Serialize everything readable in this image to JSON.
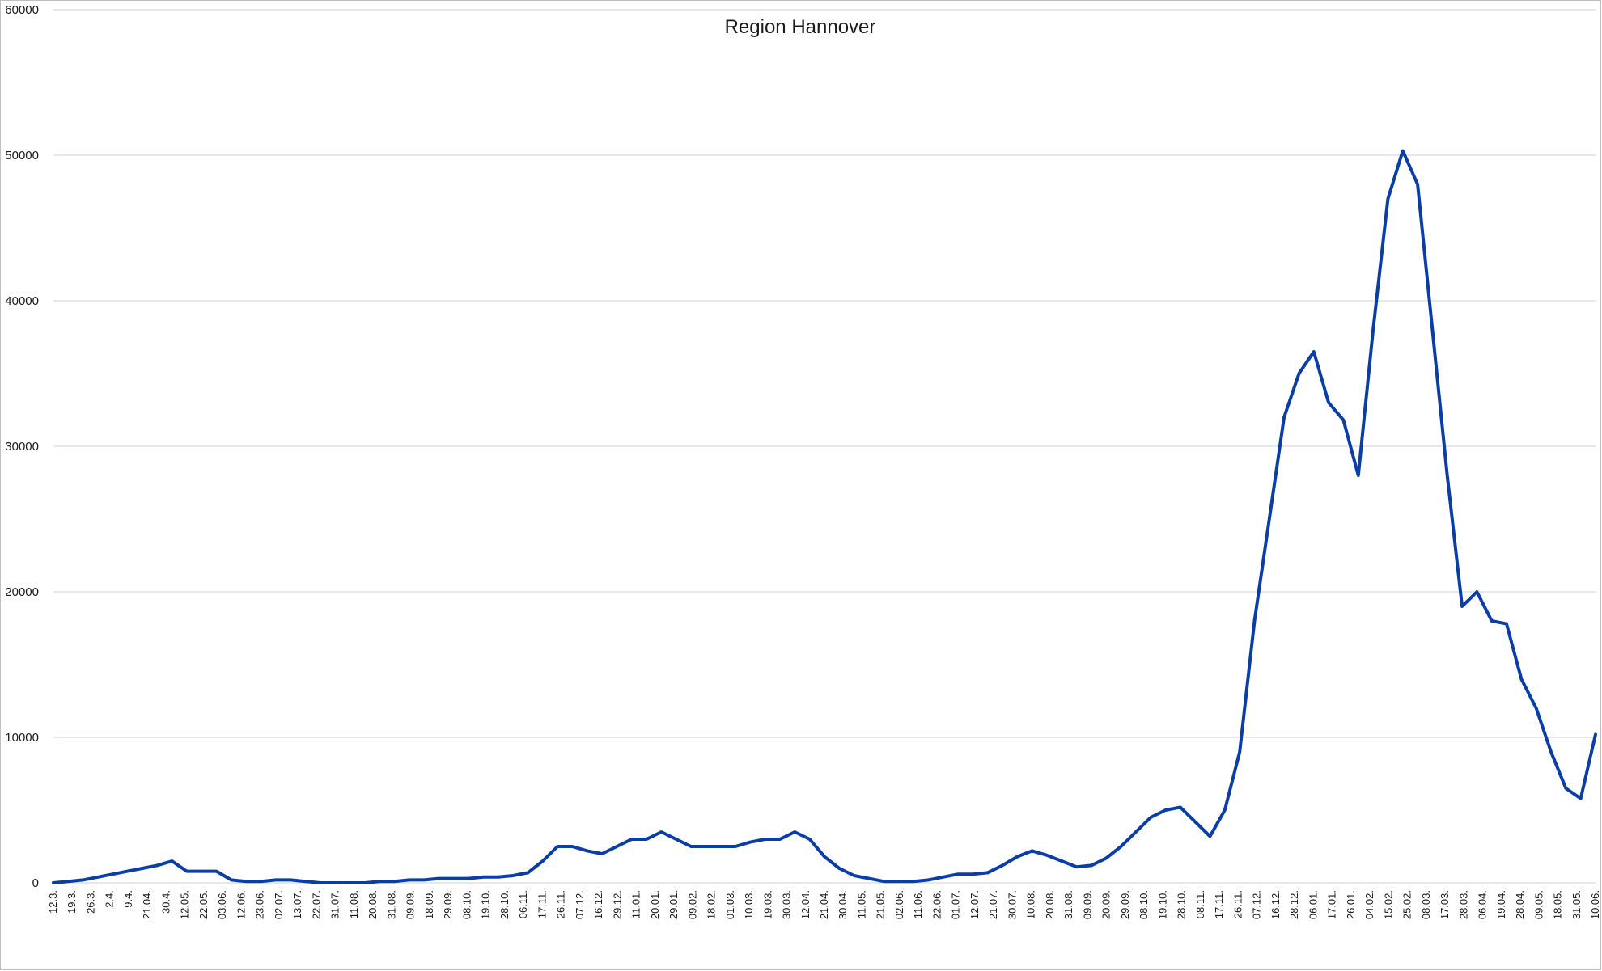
{
  "chart_data": {
    "type": "line",
    "title": "Region Hannover",
    "xlabel": "",
    "ylabel": "",
    "ylim": [
      0,
      60000
    ],
    "yticks": [
      0,
      10000,
      20000,
      30000,
      40000,
      50000,
      60000
    ],
    "grid": true,
    "legend": "none",
    "colors": {
      "line": "#0a3ea6",
      "grid": "#d9d9d9",
      "background": "#ffffff"
    },
    "x_tick_labels": [
      "12.3.",
      "19.3.",
      "26.3.",
      "2.4.",
      "9.4.",
      "21.04.",
      "30.4.",
      "12.05.",
      "22.05.",
      "03.06.",
      "12.06.",
      "23.06.",
      "02.07.",
      "13.07.",
      "22.07.",
      "31.07.",
      "11.08.",
      "20.08.",
      "31.08.",
      "09.09.",
      "18.09.",
      "29.09.",
      "08.10.",
      "19.10.",
      "28.10.",
      "06.11.",
      "17.11.",
      "26.11.",
      "07.12.",
      "16.12.",
      "29.12.",
      "11.01.",
      "20.01.",
      "29.01.",
      "09.02.",
      "18.02.",
      "01.03.",
      "10.03.",
      "19.03.",
      "30.03.",
      "12.04.",
      "21.04.",
      "30.04.",
      "11.05.",
      "21.05.",
      "02.06.",
      "11.06.",
      "22.06.",
      "01.07.",
      "12.07.",
      "21.07.",
      "30.07.",
      "10.08.",
      "20.08.",
      "31.08.",
      "09.09.",
      "20.09.",
      "29.09.",
      "08.10.",
      "19.10.",
      "28.10.",
      "08.11.",
      "17.11.",
      "26.11.",
      "07.12.",
      "16.12.",
      "28.12.",
      "06.01.",
      "17.01.",
      "26.01.",
      "04.02.",
      "15.02.",
      "25.02.",
      "08.03.",
      "17.03.",
      "28.03.",
      "06.04.",
      "19.04.",
      "28.04.",
      "09.05.",
      "18.05.",
      "31.05.",
      "10.06."
    ],
    "series": [
      {
        "values": [
          0,
          100,
          200,
          400,
          600,
          800,
          1000,
          1200,
          1500,
          800,
          800,
          800,
          200,
          100,
          100,
          200,
          200,
          100,
          0,
          0,
          0,
          0,
          100,
          100,
          200,
          200,
          300,
          300,
          300,
          400,
          400,
          500,
          700,
          1500,
          2500,
          2500,
          2200,
          2000,
          2500,
          3000,
          3000,
          3500,
          3000,
          2500,
          2500,
          2500,
          2500,
          2800,
          3000,
          3000,
          3500,
          3000,
          1800,
          1000,
          500,
          300,
          100,
          100,
          100,
          200,
          400,
          600,
          600,
          700,
          1200,
          1800,
          2200,
          1900,
          1500,
          1100,
          1200,
          1700,
          2500,
          3500,
          4500,
          5000,
          5200,
          4200,
          3200,
          5000,
          9000,
          18000,
          25000,
          32000,
          35000,
          36500,
          33000,
          31800,
          28000,
          38000,
          47000,
          50300,
          48000,
          38000,
          28000,
          19000,
          20000,
          18000,
          17800,
          14000,
          12000,
          9000,
          6500,
          5800,
          10200
        ]
      }
    ]
  }
}
